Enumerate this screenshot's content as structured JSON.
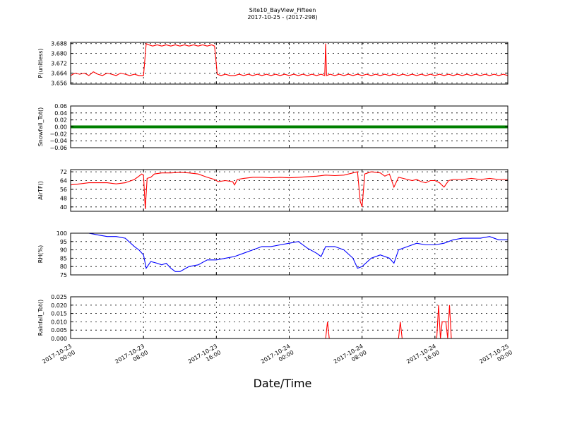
{
  "figure": {
    "title_line1": "Site10_BayView_Fifteen",
    "title_line2": "2017-10-25 - (2017-298)",
    "xlabel": "Date/Time"
  },
  "chart_data": {
    "type": "line",
    "shared_x_ticks": [
      {
        "line1": "2017-10-23",
        "line2": "00:00"
      },
      {
        "line1": "2017-10-23",
        "line2": "08:00"
      },
      {
        "line1": "2017-10-23",
        "line2": "16:00"
      },
      {
        "line1": "2017-10-24",
        "line2": "00:00"
      },
      {
        "line1": "2017-10-24",
        "line2": "08:00"
      },
      {
        "line1": "2017-10-24",
        "line2": "16:00"
      },
      {
        "line1": "2017-10-25",
        "line2": "00:00"
      }
    ],
    "xlim_hours_from_2017_10_23_0000": [
      0,
      48
    ],
    "grid": true,
    "panels": [
      {
        "ylabel": "P(unitless)",
        "color": "#ff0000",
        "ylim": [
          3.655,
          3.689
        ],
        "yticks": [
          "3.656",
          "3.664",
          "3.672",
          "3.680",
          "3.688"
        ],
        "ytick_values": [
          3.656,
          3.664,
          3.672,
          3.68,
          3.688
        ],
        "points": [
          [
            0,
            3.662
          ],
          [
            0.5,
            3.664
          ],
          [
            1,
            3.663
          ],
          [
            1.5,
            3.664
          ],
          [
            2,
            3.662
          ],
          [
            2.5,
            3.665
          ],
          [
            3,
            3.663
          ],
          [
            3.5,
            3.662
          ],
          [
            4,
            3.664
          ],
          [
            4.5,
            3.663
          ],
          [
            5,
            3.662
          ],
          [
            5.5,
            3.664
          ],
          [
            6,
            3.663
          ],
          [
            6.5,
            3.662
          ],
          [
            7,
            3.663
          ],
          [
            7.5,
            3.662
          ],
          [
            8,
            3.662
          ],
          [
            8.3,
            3.688
          ],
          [
            8.6,
            3.687
          ],
          [
            9,
            3.686
          ],
          [
            9.5,
            3.687
          ],
          [
            10,
            3.686
          ],
          [
            10.5,
            3.687
          ],
          [
            11,
            3.686
          ],
          [
            11.5,
            3.687
          ],
          [
            12,
            3.686
          ],
          [
            12.5,
            3.687
          ],
          [
            13,
            3.686
          ],
          [
            13.5,
            3.687
          ],
          [
            14,
            3.686
          ],
          [
            14.5,
            3.687
          ],
          [
            15,
            3.686
          ],
          [
            15.5,
            3.687
          ],
          [
            15.8,
            3.686
          ],
          [
            16.1,
            3.663
          ],
          [
            16.5,
            3.662
          ],
          [
            17,
            3.663
          ],
          [
            17.5,
            3.662
          ],
          [
            18,
            3.662
          ],
          [
            18.5,
            3.663
          ],
          [
            19,
            3.662
          ],
          [
            19.5,
            3.663
          ],
          [
            20,
            3.662
          ],
          [
            20.5,
            3.663
          ],
          [
            21,
            3.662
          ],
          [
            21.5,
            3.663
          ],
          [
            22,
            3.662
          ],
          [
            22.5,
            3.663
          ],
          [
            23,
            3.662
          ],
          [
            23.5,
            3.663
          ],
          [
            24,
            3.662
          ],
          [
            24.5,
            3.663
          ],
          [
            25,
            3.662
          ],
          [
            25.5,
            3.663
          ],
          [
            26,
            3.662
          ],
          [
            26.5,
            3.663
          ],
          [
            27,
            3.662
          ],
          [
            27.5,
            3.663
          ],
          [
            27.9,
            3.662
          ],
          [
            28.0,
            3.688
          ],
          [
            28.1,
            3.662
          ],
          [
            28.5,
            3.663
          ],
          [
            29,
            3.662
          ],
          [
            29.5,
            3.663
          ],
          [
            30,
            3.662
          ],
          [
            30.5,
            3.663
          ],
          [
            31,
            3.662
          ],
          [
            31.5,
            3.663
          ],
          [
            32,
            3.662
          ],
          [
            32.5,
            3.663
          ],
          [
            33,
            3.662
          ],
          [
            33.5,
            3.663
          ],
          [
            34,
            3.662
          ],
          [
            34.5,
            3.663
          ],
          [
            35,
            3.662
          ],
          [
            35.5,
            3.663
          ],
          [
            36,
            3.662
          ],
          [
            36.5,
            3.663
          ],
          [
            37,
            3.662
          ],
          [
            37.5,
            3.663
          ],
          [
            38,
            3.662
          ],
          [
            38.5,
            3.663
          ],
          [
            39,
            3.662
          ],
          [
            39.5,
            3.663
          ],
          [
            40,
            3.662
          ],
          [
            40.5,
            3.663
          ],
          [
            41,
            3.662
          ],
          [
            41.5,
            3.663
          ],
          [
            42,
            3.662
          ],
          [
            42.5,
            3.663
          ],
          [
            43,
            3.662
          ],
          [
            43.5,
            3.663
          ],
          [
            44,
            3.662
          ],
          [
            44.5,
            3.663
          ],
          [
            45,
            3.662
          ],
          [
            45.5,
            3.663
          ],
          [
            46,
            3.662
          ],
          [
            46.5,
            3.663
          ],
          [
            47,
            3.662
          ],
          [
            47.5,
            3.663
          ],
          [
            48,
            3.662
          ]
        ]
      },
      {
        "ylabel": "Snowfall_Tot()",
        "color": "#008000",
        "ylim": [
          -0.06,
          0.06
        ],
        "yticks": [
          "0.06",
          "0.04",
          "0.02",
          "0.00",
          "−0.02",
          "−0.04",
          "−0.06"
        ],
        "ytick_values": [
          0.06,
          0.04,
          0.02,
          0.0,
          -0.02,
          -0.04,
          -0.06
        ],
        "points": [
          [
            0,
            0
          ],
          [
            48,
            0
          ]
        ]
      },
      {
        "ylabel": "AirTF()",
        "color": "#ff0000",
        "ylim": [
          36,
          74
        ],
        "yticks": [
          "72",
          "64",
          "56",
          "48",
          "40"
        ],
        "ytick_values": [
          72,
          64,
          56,
          48,
          40
        ],
        "points": [
          [
            0,
            60
          ],
          [
            1,
            61
          ],
          [
            2,
            62
          ],
          [
            3,
            62
          ],
          [
            4,
            62
          ],
          [
            5,
            61
          ],
          [
            6,
            62
          ],
          [
            7,
            65
          ],
          [
            7.5,
            68
          ],
          [
            7.8,
            70
          ],
          [
            8.0,
            69
          ],
          [
            8.2,
            38
          ],
          [
            8.4,
            66
          ],
          [
            8.8,
            67
          ],
          [
            9.2,
            70
          ],
          [
            10,
            71
          ],
          [
            11,
            71
          ],
          [
            12,
            71.5
          ],
          [
            13,
            71
          ],
          [
            14,
            70
          ],
          [
            15,
            67
          ],
          [
            15.8,
            65
          ],
          [
            16.2,
            63
          ],
          [
            17,
            64
          ],
          [
            17.8,
            63
          ],
          [
            18,
            60
          ],
          [
            18.3,
            65
          ],
          [
            19,
            66
          ],
          [
            20,
            67
          ],
          [
            21,
            67
          ],
          [
            22,
            66.5
          ],
          [
            23,
            67
          ],
          [
            24,
            66.5
          ],
          [
            25,
            67
          ],
          [
            26,
            67.5
          ],
          [
            27,
            68
          ],
          [
            28,
            69
          ],
          [
            29,
            68.5
          ],
          [
            30,
            69
          ],
          [
            31,
            71
          ],
          [
            31.5,
            72
          ],
          [
            31.8,
            45
          ],
          [
            32.0,
            40
          ],
          [
            32.3,
            70
          ],
          [
            33,
            72
          ],
          [
            34,
            71
          ],
          [
            34.5,
            68
          ],
          [
            35,
            70
          ],
          [
            35.5,
            58
          ],
          [
            36,
            67
          ],
          [
            36.5,
            66
          ],
          [
            37,
            65
          ],
          [
            37.5,
            64
          ],
          [
            38,
            65
          ],
          [
            38.5,
            63
          ],
          [
            39,
            62
          ],
          [
            39.5,
            64
          ],
          [
            40,
            64
          ],
          [
            40.5,
            62
          ],
          [
            41,
            58
          ],
          [
            41.5,
            64
          ],
          [
            42,
            65
          ],
          [
            43,
            65
          ],
          [
            44,
            66
          ],
          [
            45,
            65
          ],
          [
            46,
            66
          ],
          [
            47,
            65
          ],
          [
            48,
            65
          ]
        ]
      },
      {
        "ylabel": "RH(%)",
        "color": "#0000ff",
        "ylim": [
          75,
          100
        ],
        "yticks": [
          "100",
          "95",
          "90",
          "85",
          "80",
          "75"
        ],
        "ytick_values": [
          100,
          95,
          90,
          85,
          80,
          75
        ],
        "points": [
          [
            0,
            100
          ],
          [
            2,
            100
          ],
          [
            3,
            99
          ],
          [
            4,
            98
          ],
          [
            5,
            98
          ],
          [
            6,
            97
          ],
          [
            7,
            92
          ],
          [
            7.5,
            90
          ],
          [
            8,
            87
          ],
          [
            8.3,
            79
          ],
          [
            8.8,
            83
          ],
          [
            9.5,
            82
          ],
          [
            10,
            81
          ],
          [
            10.5,
            82
          ],
          [
            11,
            79
          ],
          [
            11.5,
            77
          ],
          [
            12,
            77
          ],
          [
            13,
            80
          ],
          [
            14,
            81
          ],
          [
            15,
            84
          ],
          [
            16,
            84
          ],
          [
            17,
            85
          ],
          [
            18,
            86
          ],
          [
            19,
            88
          ],
          [
            20,
            90
          ],
          [
            21,
            92
          ],
          [
            22,
            92
          ],
          [
            23,
            93
          ],
          [
            24,
            94
          ],
          [
            25,
            95
          ],
          [
            26,
            91
          ],
          [
            27,
            88
          ],
          [
            27.5,
            86
          ],
          [
            28,
            92
          ],
          [
            29,
            92
          ],
          [
            30,
            90
          ],
          [
            31,
            85
          ],
          [
            31.5,
            79
          ],
          [
            32,
            80
          ],
          [
            33,
            85
          ],
          [
            34,
            87
          ],
          [
            35,
            85
          ],
          [
            35.5,
            82
          ],
          [
            36,
            90
          ],
          [
            37,
            92
          ],
          [
            38,
            94
          ],
          [
            39,
            93
          ],
          [
            40,
            93
          ],
          [
            41,
            94
          ],
          [
            42,
            96
          ],
          [
            43,
            97
          ],
          [
            44,
            97
          ],
          [
            45,
            97
          ],
          [
            46,
            98
          ],
          [
            47,
            96
          ],
          [
            48,
            96
          ]
        ]
      },
      {
        "ylabel": "Rainfall_Tot()",
        "color": "#ff0000",
        "ylim": [
          0.0,
          0.025
        ],
        "yticks": [
          "0.025",
          "0.020",
          "0.015",
          "0.010",
          "0.005",
          "0.000"
        ],
        "ytick_values": [
          0.025,
          0.02,
          0.015,
          0.01,
          0.005,
          0.0
        ],
        "points": [
          [
            0,
            0
          ],
          [
            28.0,
            0
          ],
          [
            28.2,
            0.01
          ],
          [
            28.4,
            0
          ],
          [
            36.0,
            0
          ],
          [
            36.2,
            0.01
          ],
          [
            36.4,
            0
          ],
          [
            40.2,
            0
          ],
          [
            40.4,
            0.02
          ],
          [
            40.6,
            0
          ],
          [
            40.8,
            0.01
          ],
          [
            41.2,
            0.01
          ],
          [
            41.4,
            0
          ],
          [
            41.6,
            0.02
          ],
          [
            41.8,
            0
          ],
          [
            48,
            0
          ]
        ]
      }
    ]
  }
}
